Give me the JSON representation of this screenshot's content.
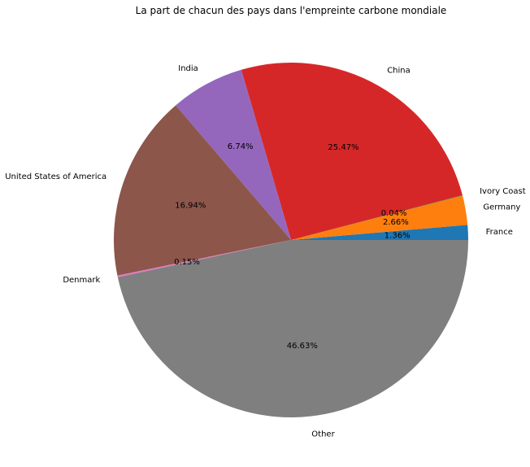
{
  "chart_data": {
    "type": "pie",
    "title": "La part de chacun des pays dans l'empreinte carbone mondiale",
    "slices": [
      {
        "label": "France",
        "value": 1.36,
        "pct_label": "1.36%",
        "color": "#1f77b4"
      },
      {
        "label": "Germany",
        "value": 2.66,
        "pct_label": "2.66%",
        "color": "#ff7f0e"
      },
      {
        "label": "Ivory Coast",
        "value": 0.04,
        "pct_label": "0.04%",
        "color": "#2ca02c"
      },
      {
        "label": "China",
        "value": 25.47,
        "pct_label": "25.47%",
        "color": "#d62728"
      },
      {
        "label": "India",
        "value": 6.74,
        "pct_label": "6.74%",
        "color": "#9467bd"
      },
      {
        "label": "United States of America",
        "value": 16.94,
        "pct_label": "16.94%",
        "color": "#8c564b"
      },
      {
        "label": "Denmark",
        "value": 0.15,
        "pct_label": "0.15%",
        "color": "#e377c2"
      },
      {
        "label": "Other",
        "value": 46.63,
        "pct_label": "46.63%",
        "color": "#7f7f7f"
      }
    ],
    "start_angle_deg": 0,
    "direction": "counterclockwise"
  }
}
